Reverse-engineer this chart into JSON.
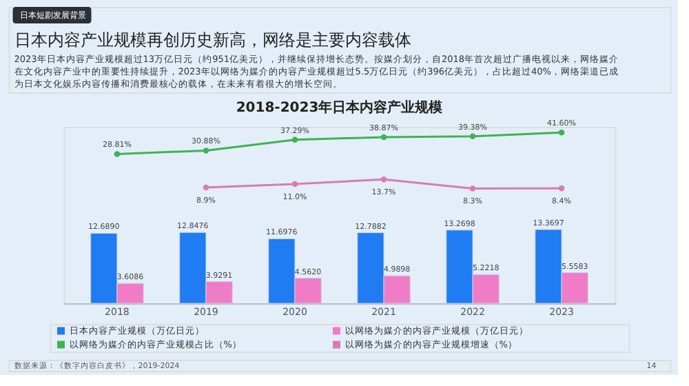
{
  "chart_data": {
    "type": "bar",
    "title": "2018-2023年日本内容产业规模",
    "categories": [
      "2018",
      "2019",
      "2020",
      "2021",
      "2022",
      "2023"
    ],
    "series": [
      {
        "name": "日本内容产业规模（万亿日元）",
        "color": "#1f7cf2",
        "values": [
          12.689,
          12.8476,
          11.6976,
          12.7882,
          13.2698,
          13.3697
        ],
        "value_labels": [
          "12.6890",
          "12.8476",
          "11.6976",
          "12.7882",
          "13.2698",
          "13.3697"
        ]
      },
      {
        "name": "以网络为媒介的内容产业规模（万亿日元）",
        "color": "#f07cc8",
        "values": [
          3.6086,
          3.9291,
          4.562,
          4.9898,
          5.2218,
          5.5583
        ],
        "value_labels": [
          "3.6086",
          "3.9291",
          "4.5620",
          "4.9898",
          "5.2218",
          "5.5583"
        ]
      },
      {
        "name": "以网络为媒介的内容产业规模占比（%）",
        "type": "line",
        "axis": "y2",
        "color": "#3db354",
        "values": [
          28.81,
          30.88,
          37.29,
          38.87,
          39.38,
          41.6
        ],
        "value_labels": [
          "28.81%",
          "30.88%",
          "37.29%",
          "38.87%",
          "39.38%",
          "41.60%"
        ]
      },
      {
        "name": "以网络为媒介的内容产业规模增速（%）",
        "type": "line",
        "axis": "y2",
        "color": "#d97bb3",
        "values": [
          null,
          8.9,
          11.0,
          13.7,
          8.3,
          8.4
        ],
        "value_labels": [
          null,
          "8.9%",
          "11.0%",
          "13.7%",
          "8.3%",
          "8.4%"
        ]
      }
    ],
    "ylim": [
      0,
      32
    ],
    "y2lim": [
      -60,
      45
    ],
    "tick_labels": "x",
    "grid": false,
    "legend": "bottom",
    "marker": "circle",
    "annotations": [
      "日本短剧发展背景",
      "日本内容产业规模再创历史新高，网络是主要内容载体",
      "2023年日本内容产业规模超过13万亿日元（约951亿美元），并继续保持增长态势。按媒介划分，自2018年首次超过广播电视以来，网络媒介在文化内容产业中的重要性持续提升，2023年以网络为媒介的内容产业规模超过5.5万亿日元（约396亿美元），占比超过40%，网络渠道已成为日本文化娱乐内容传播和消费最核心的载体，在未来有着很大的增长空间。",
      "数据来源：《数字内容白皮书》，2019-2024",
      "14"
    ]
  }
}
